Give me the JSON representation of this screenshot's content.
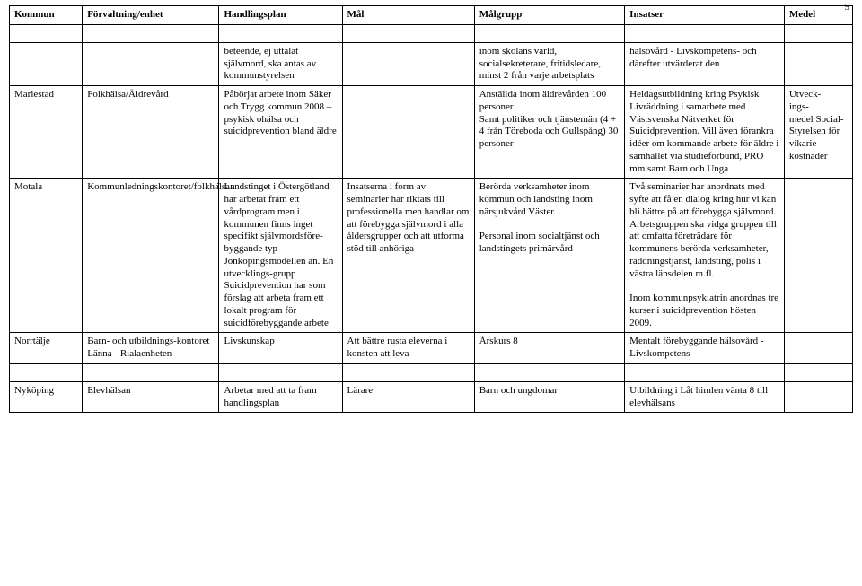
{
  "pageNumber": "5",
  "headers": {
    "c1": "Kommun",
    "c2": "Förvaltning/enhet",
    "c3": "Handlingsplan",
    "c4": "Mål",
    "c5": "Målgrupp",
    "c6": "Insatser",
    "c7": "Medel"
  },
  "rows": [
    {
      "c1": "",
      "c2": "",
      "c3": "beteende, ej uttalat självmord, ska antas av kommunstyrelsen",
      "c4": "",
      "c5": "inom skolans värld, socialsekreterare, fritidsledare, minst 2 från varje arbetsplats",
      "c6": "hälsovård - Livskompetens- och därefter utvärderat den",
      "c7": ""
    },
    {
      "c1": "Mariestad",
      "c2": "Folkhälsa/Äldrevård",
      "c3": "Påbörjat arbete inom Säker och Trygg kommun 2008 – psykisk ohälsa och suicidprevention bland äldre",
      "c4": "",
      "c5": "Anställda inom äldrevården 100 personer\nSamt politiker och tjänstemän (4 + 4 från Töreboda och Gullspång) 30 personer",
      "c6": "Heldagsutbildning kring Psykisk Livräddning  i samarbete med Västsvenska Nätverket för Suicidprevention. Vill även förankra idéer om kommande arbete för äldre i samhället via studieförbund, PRO mm samt Barn och Unga",
      "c7": "Utveck-\nings-\nmedel Social-\nStyrelsen för vikarie-\nkostnader"
    },
    {
      "c1": "Motala",
      "c2": "Kommunledningskontoret/folkhälsan",
      "c3": "Landstinget i Östergötland har arbetat fram ett vårdprogram men i kommunen finns inget specifikt självmordsföre-byggande typ Jönköpingsmodellen än. En utvecklings-grupp Suicidprevention har som förslag att arbeta fram ett lokalt program för suicidförebyggande arbete",
      "c4": "Insatserna i form av seminarier har riktats till professionella men handlar om att förebygga självmord i alla åldersgrupper och att utforma stöd till anhöriga",
      "c5": "Berörda verksamheter inom kommun och landsting inom närsjukvård Väster.\n\nPersonal inom socialtjänst och landstingets primärvård",
      "c6": "Två seminarier har anordnats med syfte att få en dialog kring hur vi kan bli bättre på att förebygga självmord. Arbetsgruppen ska vidga gruppen till att omfatta företrädare för kommunens berörda verksamheter, räddningstjänst, landsting, polis i västra länsdelen m.fl.\n\nInom kommunpsykiatrin anordnas tre kurser i suicidprevention hösten 2009.",
      "c7": ""
    },
    {
      "c1": "Norrtälje",
      "c2": "Barn- och utbildnings-kontoret Länna - Rialaenheten",
      "c3": "Livskunskap",
      "c4": "Att bättre rusta eleverna i konsten att leva",
      "c5": "Årskurs 8",
      "c6": "Mentalt förebyggande hälsovård - Livskompetens",
      "c7": ""
    },
    {
      "c1": "Nyköping",
      "c2": "Elevhälsan",
      "c3": "Arbetar med att ta fram handlingsplan",
      "c4": "Lärare",
      "c5": "Barn och ungdomar",
      "c6": "Utbildning i Låt himlen vänta 8 till elevhälsans",
      "c7": ""
    }
  ]
}
